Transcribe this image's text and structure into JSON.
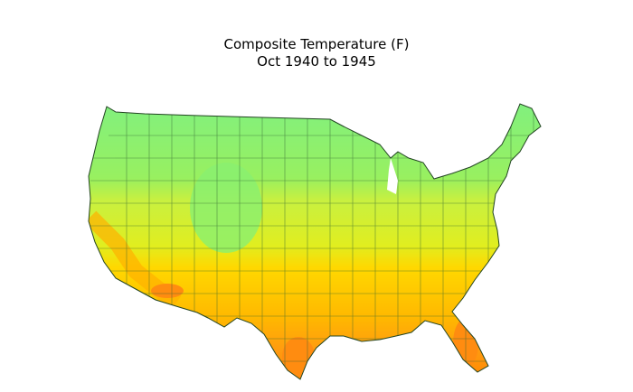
{
  "header": {
    "title": "Composite Temperature (F)",
    "subtitle": "Oct 1940 to 1945"
  }
}
